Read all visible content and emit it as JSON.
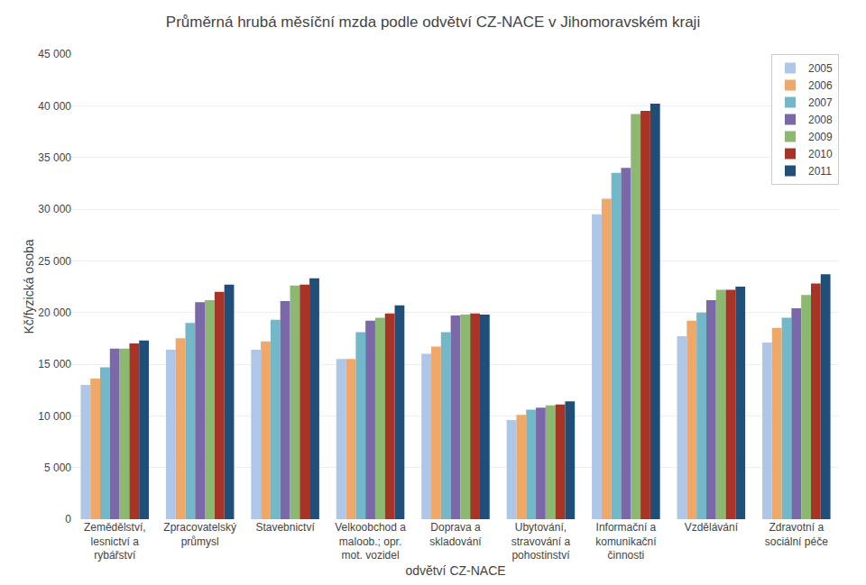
{
  "chart_data": {
    "type": "bar",
    "title": "Průměrná hrubá měsíční mzda podle odvětví CZ-NACE v Jihomoravském kraji",
    "xlabel": "odvětví CZ-NACE",
    "ylabel": "Kč/fyzická osoba",
    "categories": [
      "Zemědělství,\nlesnictví a\nrybářství",
      "Zpracovatelský\nprůmysl",
      "Stavebnictví",
      "Velkoobchod a\nmaloob.; opr.\nmot. vozidel",
      "Doprava a\nskladování",
      "Ubytování,\nstravování a\npohostinství",
      "Informační a\nkomunikační\nčinnosti",
      "Vzdělávání",
      "Zdravotní a\nsociální péče"
    ],
    "series": [
      {
        "name": "2005",
        "color": "#aec6e8",
        "values": [
          13000,
          16400,
          16400,
          15500,
          16000,
          9600,
          29500,
          17700,
          17100
        ]
      },
      {
        "name": "2006",
        "color": "#f0a868",
        "values": [
          13600,
          17500,
          17200,
          15500,
          16700,
          10100,
          31000,
          19200,
          18500
        ]
      },
      {
        "name": "2007",
        "color": "#72b8c8",
        "values": [
          14700,
          19000,
          19300,
          18100,
          18100,
          10600,
          33500,
          20000,
          19500
        ]
      },
      {
        "name": "2008",
        "color": "#7b68a8",
        "values": [
          16500,
          21000,
          21100,
          19200,
          19700,
          10800,
          34000,
          21200,
          20400
        ]
      },
      {
        "name": "2009",
        "color": "#8db870",
        "values": [
          16500,
          21200,
          22600,
          19500,
          19800,
          11000,
          39200,
          22200,
          21700
        ]
      },
      {
        "name": "2010",
        "color": "#a83428",
        "values": [
          17000,
          22000,
          22700,
          19900,
          19900,
          11100,
          39500,
          22200,
          22800
        ]
      },
      {
        "name": "2011",
        "color": "#1f4e79",
        "values": [
          17300,
          22700,
          23300,
          20700,
          19800,
          11400,
          40200,
          22500,
          23700
        ]
      }
    ],
    "ylim": [
      0,
      45000
    ],
    "yticks": [
      0,
      {
        "value": 5000,
        "label": "5 000"
      },
      {
        "value": 10000,
        "label": "10 000"
      },
      {
        "value": 15000,
        "label": "15 000"
      },
      {
        "value": 20000,
        "label": "20 000"
      },
      {
        "value": 25000,
        "label": "25 000"
      },
      {
        "value": 30000,
        "label": "30 000"
      },
      {
        "value": 35000,
        "label": "35 000"
      },
      {
        "value": 40000,
        "label": "40 000"
      },
      {
        "value": 45000,
        "label": "45 000"
      }
    ],
    "grid": true,
    "legend": "upper right"
  }
}
